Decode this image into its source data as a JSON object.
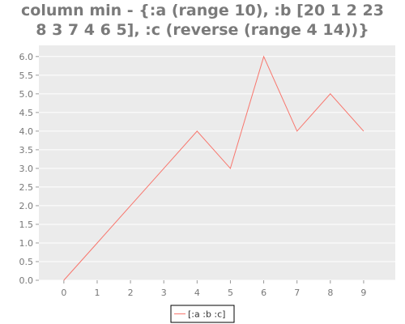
{
  "chart_data": {
    "type": "line",
    "title_lines": [
      "column min - {:a (range 10), :b [20 1 2 23",
      "8 3 7 4 6 5], :c (reverse (range 4 14))}"
    ],
    "x": [
      0,
      1,
      2,
      3,
      4,
      5,
      6,
      7,
      8,
      9
    ],
    "series": [
      {
        "name": "[:a :b :c]",
        "values": [
          0,
          1,
          2,
          3,
          4,
          3,
          6,
          4,
          5,
          4
        ]
      }
    ],
    "xlim": [
      -0.75,
      9.95
    ],
    "ylim": [
      0,
      6.3
    ],
    "x_ticks": [
      0,
      1,
      2,
      3,
      4,
      5,
      6,
      7,
      8,
      9
    ],
    "y_ticks": [
      "0.0",
      "0.5",
      "1.0",
      "1.5",
      "2.0",
      "2.5",
      "3.0",
      "3.5",
      "4.0",
      "4.5",
      "5.0",
      "5.5",
      "6.0"
    ],
    "grid": true,
    "legend": "bottom-center",
    "colors": {
      "background": "#ebebeb",
      "grid": "#ffffff",
      "line": "#f8766d",
      "title": "#7a7a7a"
    }
  }
}
